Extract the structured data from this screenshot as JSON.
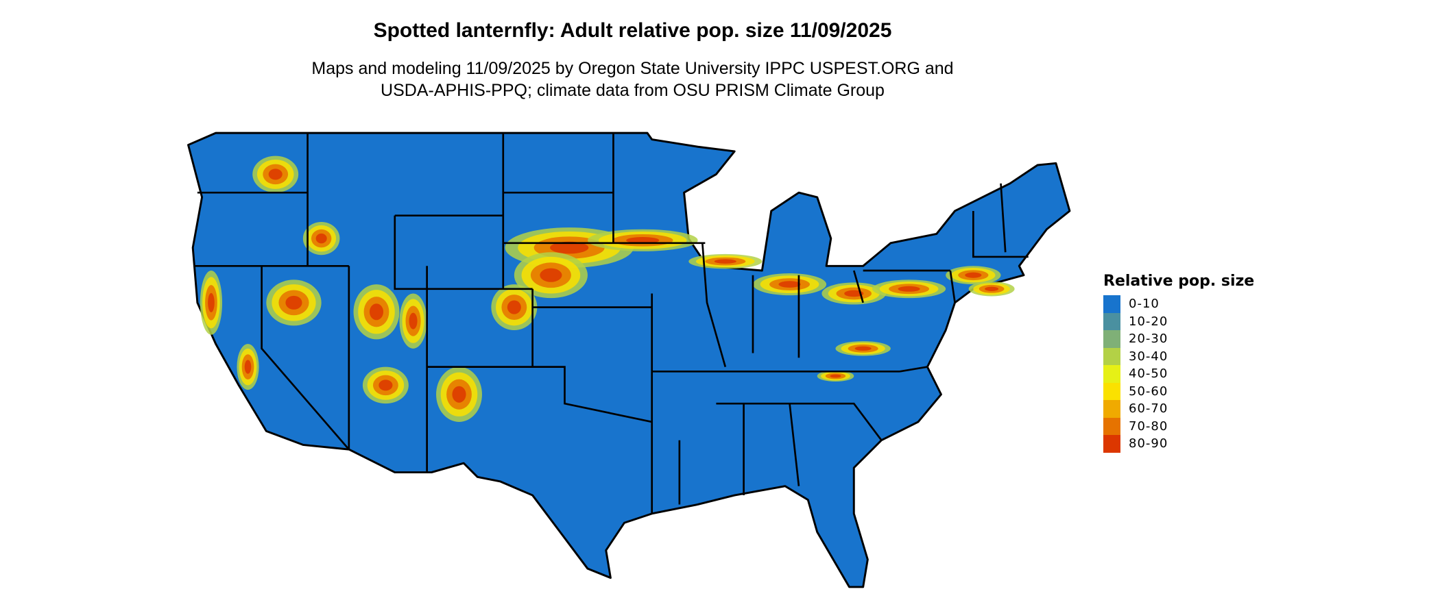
{
  "chart_data": {
    "type": "heatmap",
    "title": "Spotted lanternfly: Adult relative pop. size 11/09/2025",
    "subtitle_lines": [
      "Maps and modeling 11/09/2025 by Oregon State University IPPC USPEST.ORG and",
      "USDA-APHIS-PPQ; climate data from OSU PRISM Climate Group"
    ],
    "legend": {
      "title": "Relative pop. size",
      "placement": "right",
      "items": [
        {
          "label": "0-10",
          "color": "#1874CD"
        },
        {
          "label": "10-20",
          "color": "#4A90A0"
        },
        {
          "label": "20-30",
          "color": "#7FB077"
        },
        {
          "label": "30-40",
          "color": "#B3D146"
        },
        {
          "label": "40-50",
          "color": "#E6F016"
        },
        {
          "label": "50-60",
          "color": "#FAE100"
        },
        {
          "label": "60-70",
          "color": "#F0AA00"
        },
        {
          "label": "70-80",
          "color": "#E67300"
        },
        {
          "label": "80-90",
          "color": "#DC3700"
        }
      ]
    },
    "map_region": "contiguous United States with state borders",
    "background_class": "0-10"
  }
}
